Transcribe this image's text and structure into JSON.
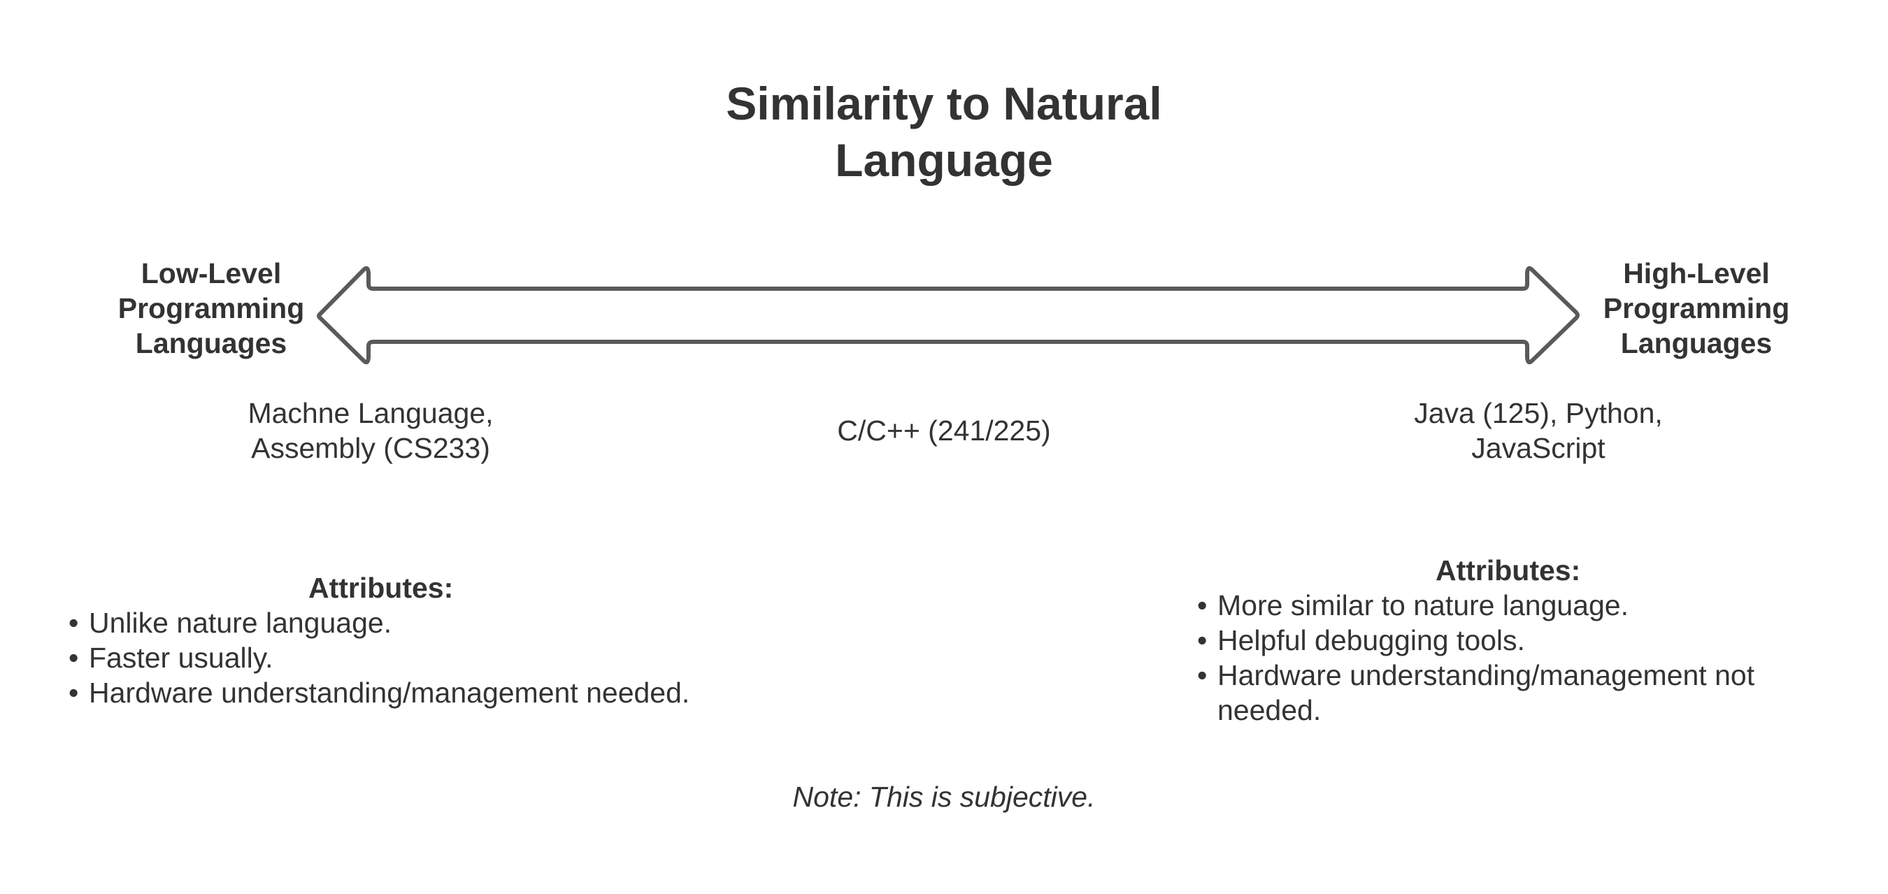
{
  "title": {
    "line1": "Similarity to Natural",
    "line2": "Language"
  },
  "left_end": {
    "line1": "Low-Level",
    "line2": "Programming",
    "line3": "Languages"
  },
  "right_end": {
    "line1": "High-Level",
    "line2": "Programming",
    "line3": "Languages"
  },
  "arrow": {
    "stroke_color": "#5a5a5a",
    "fill_color": "#ffffff",
    "icon": "double-headed-arrow"
  },
  "languages": {
    "low": {
      "line1": "Machne Language,",
      "line2": "Assembly (CS233)"
    },
    "mid": {
      "line1": "C/C++ (241/225)"
    },
    "high": {
      "line1": "Java (125), Python,",
      "line2": "JavaScript"
    }
  },
  "attributes_left": {
    "heading": "Attributes:",
    "items": [
      "Unlike nature language.",
      "Faster usually.",
      "Hardware understanding/management needed."
    ]
  },
  "attributes_right": {
    "heading": "Attributes:",
    "items": [
      "More similar to nature language.",
      "Helpful debugging tools.",
      "Hardware understanding/management not needed."
    ]
  },
  "note": "Note: This is subjective.",
  "colors": {
    "text": "#333333",
    "background": "#ffffff"
  }
}
